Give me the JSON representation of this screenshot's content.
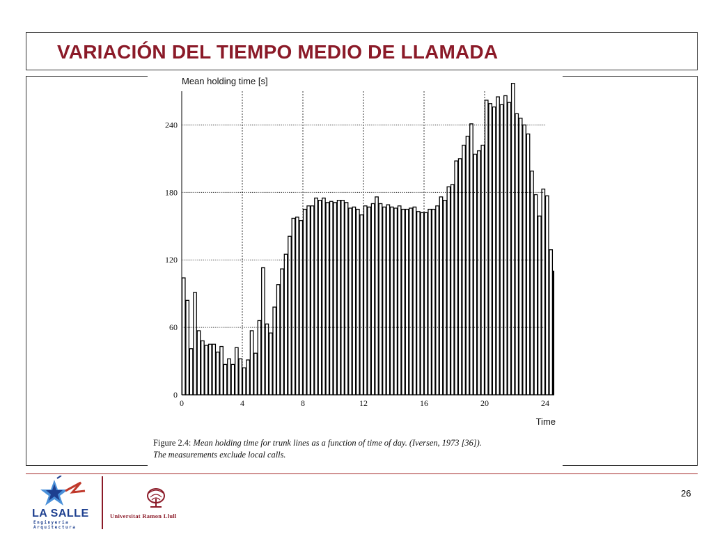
{
  "slide": {
    "title": "VARIACIÓN DEL TIEMPO MEDIO DE LLAMADA",
    "page_number": "26"
  },
  "figure": {
    "caption_prefix": "Figure 2.4:",
    "caption_text": "Mean holding time for trunk lines as a function of time of day. (Iversen, 1973 [36]).",
    "caption_line2": "The measurements exclude local calls."
  },
  "footer": {
    "logo_left_name": "LA SALLE",
    "logo_left_sub1": "Enginyeria",
    "logo_left_sub2": "Arquitectura",
    "logo_right_name": "Universitat Ramon Llull"
  },
  "colors": {
    "title": "#8b1a28",
    "footer_rule": "#a52a2a",
    "lasalle_blue": "#1d3f8f"
  },
  "chart_data": {
    "type": "bar",
    "ylabel": "Mean holding time [s]",
    "xlabel": "Time",
    "xlim": [
      0,
      24
    ],
    "ylim": [
      0,
      270
    ],
    "xticks": [
      0,
      4,
      8,
      12,
      16,
      20,
      24
    ],
    "yticks": [
      0,
      60,
      120,
      180,
      240
    ],
    "grid": true,
    "bin_width_hours": 0.25,
    "values": [
      104,
      84,
      41,
      91,
      57,
      48,
      44,
      45,
      45,
      38,
      43,
      27,
      32,
      27,
      42,
      32,
      24,
      31,
      57,
      37,
      66,
      113,
      63,
      55,
      78,
      98,
      112,
      125,
      141,
      157,
      158,
      155,
      165,
      168,
      168,
      175,
      173,
      175,
      171,
      172,
      171,
      173,
      173,
      171,
      166,
      167,
      165,
      160,
      168,
      167,
      170,
      176,
      170,
      167,
      169,
      167,
      166,
      168,
      165,
      165,
      166,
      167,
      163,
      162,
      162,
      165,
      165,
      168,
      176,
      173,
      185,
      187,
      208,
      210,
      222,
      230,
      241,
      214,
      217,
      222,
      262,
      259,
      256,
      265,
      258,
      266,
      260,
      277,
      250,
      246,
      240,
      232,
      199,
      178,
      159,
      183,
      177,
      129,
      110
    ]
  }
}
